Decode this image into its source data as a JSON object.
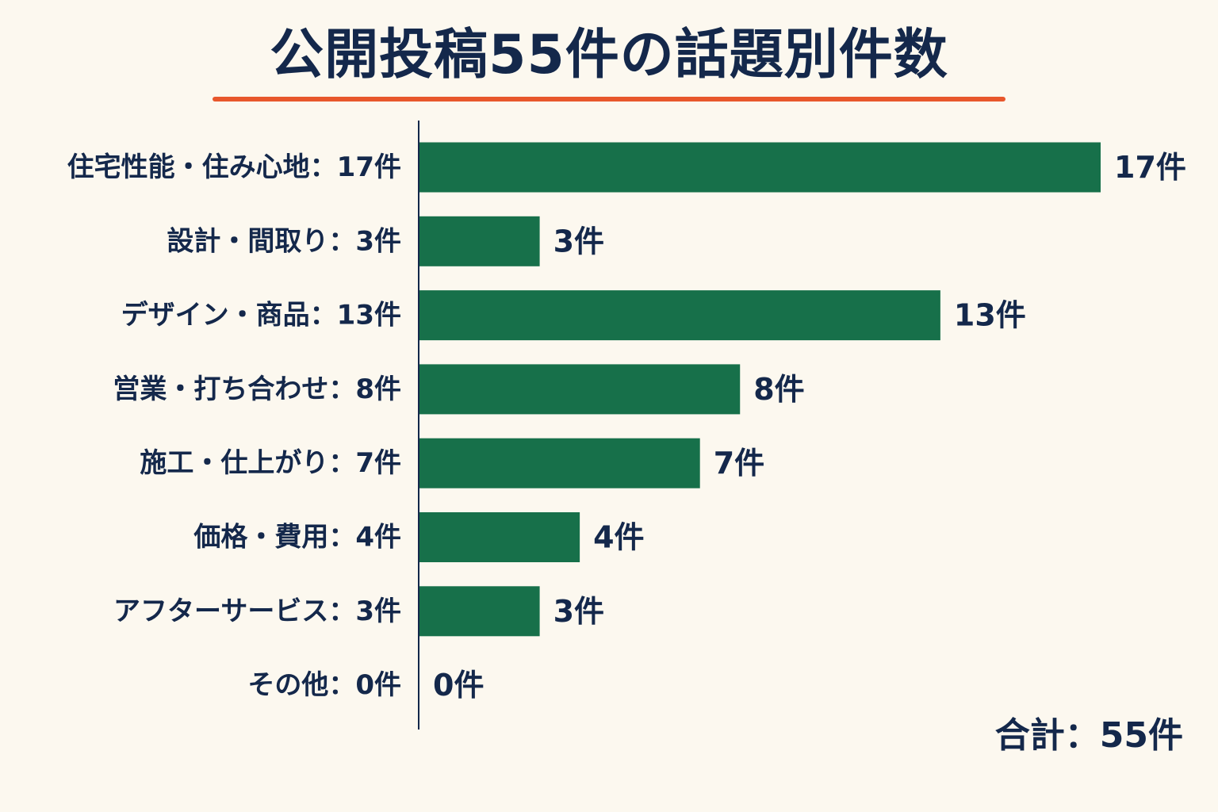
{
  "title": "公開投稿55件の話題別件数",
  "total_label": "合計：55件",
  "colors": {
    "background": "#fcf8ef",
    "bar": "#17704a",
    "text": "#14284b",
    "accent": "#e8572c",
    "axis": "#14284b"
  },
  "chart_data": {
    "type": "bar",
    "orientation": "horizontal",
    "title": "公開投稿55件の話題別件数",
    "categories": [
      "住宅性能・住み心地",
      "設計・間取り",
      "デザイン・商品",
      "営業・打ち合わせ",
      "施工・仕上がり",
      "価格・費用",
      "アフターサービス",
      "その他"
    ],
    "category_labels": [
      "住宅性能・住み心地：17件",
      "設計・間取り：3件",
      "デザイン・商品：13件",
      "営業・打ち合わせ：8件",
      "施工・仕上がり：7件",
      "価格・費用：4件",
      "アフターサービス：3件",
      "その他：0件"
    ],
    "values": [
      17,
      3,
      13,
      8,
      7,
      4,
      3,
      0
    ],
    "value_labels": [
      "17件",
      "3件",
      "13件",
      "8件",
      "7件",
      "4件",
      "3件",
      "0件"
    ],
    "xlim": [
      0,
      17
    ],
    "grid": false,
    "legend": "none",
    "total": "合計：55件"
  }
}
